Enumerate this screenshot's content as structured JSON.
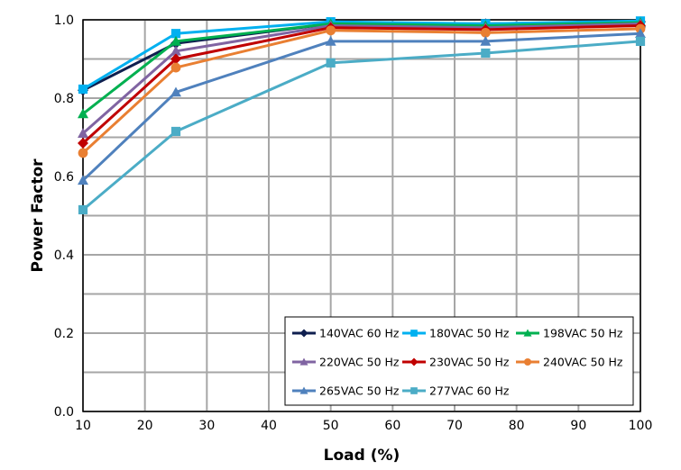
{
  "chart_data": {
    "type": "line",
    "xlabel": "Load (%)",
    "ylabel": "Power Factor",
    "xlim": [
      10,
      100
    ],
    "ylim": [
      0,
      1
    ],
    "xticks": [
      "10",
      "20",
      "30",
      "40",
      "50",
      "60",
      "70",
      "80",
      "90",
      "100"
    ],
    "yticks": [
      "0.0",
      "0.2",
      "0.4",
      "0.6",
      "0.8",
      "1.0"
    ],
    "grid": true,
    "legend_position": "bottom-right",
    "x": [
      10,
      25,
      50,
      75,
      100
    ],
    "series": [
      {
        "name": "140VAC 60 Hz",
        "color": "#0f1f4f",
        "marker": "diamond",
        "values": [
          0.82,
          0.94,
          0.99,
          0.99,
          0.995
        ]
      },
      {
        "name": "180VAC 50 Hz",
        "color": "#00b0f0",
        "marker": "square",
        "values": [
          0.823,
          0.965,
          0.995,
          0.99,
          0.997
        ]
      },
      {
        "name": "198VAC 50 Hz",
        "color": "#00b050",
        "marker": "triangle",
        "values": [
          0.76,
          0.945,
          0.99,
          0.985,
          0.993
        ]
      },
      {
        "name": "220VAC 50 Hz",
        "color": "#8064a2",
        "marker": "triangle",
        "values": [
          0.71,
          0.92,
          0.985,
          0.98,
          0.99
        ]
      },
      {
        "name": "230VAC 50 Hz",
        "color": "#c00000",
        "marker": "diamond",
        "values": [
          0.685,
          0.9,
          0.98,
          0.975,
          0.985
        ]
      },
      {
        "name": "240VAC 50 Hz",
        "color": "#e97f32",
        "marker": "circle",
        "values": [
          0.66,
          0.878,
          0.973,
          0.967,
          0.977
        ]
      },
      {
        "name": "265VAC 50 Hz",
        "color": "#4f81bd",
        "marker": "triangle",
        "values": [
          0.59,
          0.815,
          0.945,
          0.945,
          0.965
        ]
      },
      {
        "name": "277VAC 60 Hz",
        "color": "#4bacc6",
        "marker": "square",
        "values": [
          0.515,
          0.715,
          0.89,
          0.915,
          0.945
        ]
      }
    ]
  }
}
